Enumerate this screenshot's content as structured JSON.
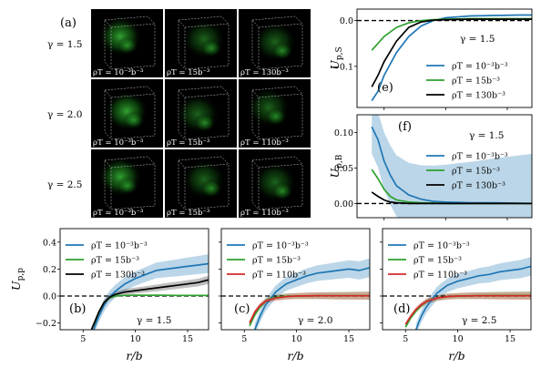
{
  "chart_data": [
    {
      "panel": "(a)",
      "type": "image-grid",
      "rows": [
        {
          "gamma_label": "γ = 1.5",
          "cells": [
            "ρT = 10⁻³b⁻³",
            "ρT = 15b⁻³",
            "ρT = 130b⁻³"
          ]
        },
        {
          "gamma_label": "γ = 2.0",
          "cells": [
            "ρT = 10⁻³b⁻³",
            "ρT = 15b⁻³",
            "ρT = 110b⁻³"
          ]
        },
        {
          "gamma_label": "γ = 2.5",
          "cells": [
            "ρT = 10⁻³b⁻³",
            "ρT = 15b⁻³",
            "ρT = 110b⁻³"
          ]
        }
      ]
    },
    {
      "panel": "(e)",
      "type": "line",
      "ylabel": "U_p,S",
      "ylim": [
        -0.19,
        0.025
      ],
      "xlim": [
        2.8,
        17
      ],
      "yticks": [
        0.0,
        -0.1
      ],
      "ytick_labels": [
        "0.0",
        "−0.1"
      ],
      "annotation": "γ = 1.5",
      "legend": "bottom-right",
      "series": [
        {
          "name": "ρT = 10⁻³b⁻³",
          "color": "#1f77b4",
          "x": [
            4,
            4.5,
            5,
            6,
            7,
            8,
            9,
            10,
            12,
            14,
            16,
            17
          ],
          "y": [
            -0.175,
            -0.155,
            -0.12,
            -0.07,
            -0.035,
            -0.012,
            0.0,
            0.006,
            0.01,
            0.011,
            0.012,
            0.012
          ]
        },
        {
          "name": "ρT = 15b⁻³",
          "color": "#2ca02c",
          "x": [
            4,
            4.5,
            5,
            6,
            7,
            8,
            9,
            10,
            12,
            14,
            16,
            17
          ],
          "y": [
            -0.065,
            -0.05,
            -0.035,
            -0.015,
            -0.005,
            0.0,
            0.002,
            0.003,
            0.004,
            0.004,
            0.004,
            0.004
          ]
        },
        {
          "name": "ρT = 130b⁻³",
          "color": "#000000",
          "x": [
            4,
            4.5,
            5,
            6,
            7,
            8,
            9,
            10,
            12,
            14,
            16,
            17
          ],
          "y": [
            -0.145,
            -0.12,
            -0.09,
            -0.045,
            -0.015,
            -0.003,
            0.001,
            0.002,
            0.003,
            0.003,
            0.003,
            0.003
          ]
        }
      ]
    },
    {
      "panel": "(f)",
      "type": "line",
      "ylabel": "U_p,B",
      "ylim": [
        -0.02,
        0.125
      ],
      "xlim": [
        2.8,
        17
      ],
      "yticks": [
        0.0,
        0.05,
        0.1
      ],
      "ytick_labels": [
        "0.00",
        "0.05",
        "0.10"
      ],
      "annotation": "γ = 1.5",
      "legend": "center-right",
      "series": [
        {
          "name": "ρT = 10⁻³b⁻³",
          "color": "#1f77b4",
          "band": true,
          "x": [
            4,
            4.5,
            5,
            5.5,
            6,
            7,
            8,
            9,
            10,
            12,
            14,
            17
          ],
          "y": [
            0.108,
            0.09,
            0.06,
            0.04,
            0.025,
            0.012,
            0.006,
            0.003,
            0.002,
            0.001,
            0.001,
            0.0
          ]
        },
        {
          "name": "ρT = 15b⁻³",
          "color": "#2ca02c",
          "x": [
            4,
            4.5,
            5,
            5.5,
            6,
            7,
            8,
            10,
            17
          ],
          "y": [
            0.048,
            0.035,
            0.02,
            0.01,
            0.005,
            0.002,
            0.001,
            0.0,
            0.0
          ]
        },
        {
          "name": "ρT = 130b⁻³",
          "color": "#000000",
          "x": [
            4,
            4.5,
            5,
            5.5,
            6,
            7,
            8,
            10,
            17
          ],
          "y": [
            0.016,
            0.01,
            0.005,
            0.002,
            0.001,
            0.0,
            0.0,
            0.0,
            0.0
          ]
        }
      ]
    },
    {
      "panel": "(b)",
      "type": "line",
      "ylabel": "U_p,p",
      "xlabel": "r/b",
      "ylim": [
        -0.25,
        0.5
      ],
      "xlim": [
        2.8,
        17
      ],
      "yticks": [
        -0.2,
        0.0,
        0.2,
        0.4
      ],
      "ytick_labels": [
        "−0.2",
        "0.0",
        "0.2",
        "0.4"
      ],
      "xticks": [
        5,
        10,
        15
      ],
      "annotation": "γ = 1.5",
      "legend": "top-left",
      "series": [
        {
          "name": "ρT = 10⁻³b⁻³",
          "color": "#1f77b4",
          "band": true,
          "x": [
            6,
            6.5,
            7,
            7.5,
            8,
            8.5,
            9,
            10,
            11,
            12,
            13,
            14,
            15,
            16,
            17
          ],
          "y": [
            -0.25,
            -0.15,
            -0.07,
            -0.01,
            0.03,
            0.06,
            0.09,
            0.13,
            0.16,
            0.19,
            0.2,
            0.21,
            0.22,
            0.23,
            0.24
          ]
        },
        {
          "name": "ρT = 15b⁻³",
          "color": "#2ca02c",
          "x": [
            6,
            6.5,
            7,
            7.5,
            8,
            9,
            10,
            12,
            14,
            17
          ],
          "y": [
            -0.22,
            -0.12,
            -0.05,
            -0.015,
            0.0,
            0.005,
            0.006,
            0.006,
            0.005,
            0.005
          ]
        },
        {
          "name": "ρT = 130b⁻³",
          "color": "#000000",
          "band": true,
          "x": [
            5.8,
            6.5,
            7,
            7.5,
            8,
            9,
            10,
            11,
            12,
            13,
            14,
            15,
            16,
            17
          ],
          "y": [
            -0.25,
            -0.12,
            -0.05,
            -0.01,
            0.01,
            0.03,
            0.04,
            0.05,
            0.06,
            0.07,
            0.08,
            0.09,
            0.1,
            0.12
          ]
        }
      ]
    },
    {
      "panel": "(c)",
      "type": "line",
      "xlabel": "r/b",
      "ylim": [
        -0.25,
        0.5
      ],
      "xlim": [
        2.8,
        17
      ],
      "xticks": [
        5,
        10,
        15
      ],
      "annotation": "γ = 2.0",
      "legend": "top-left",
      "series": [
        {
          "name": "ρT = 10⁻³b⁻³",
          "color": "#1f77b4",
          "band": true,
          "x": [
            6,
            6.5,
            7,
            7.5,
            8,
            8.5,
            9,
            10,
            11,
            12,
            13,
            14,
            15,
            16,
            17
          ],
          "y": [
            -0.25,
            -0.15,
            -0.07,
            -0.02,
            0.03,
            0.06,
            0.09,
            0.12,
            0.15,
            0.17,
            0.18,
            0.19,
            0.2,
            0.19,
            0.21
          ]
        },
        {
          "name": "ρT = 15b⁻³",
          "color": "#2ca02c",
          "band": true,
          "x": [
            5.5,
            6,
            6.5,
            7,
            7.5,
            8,
            9,
            10,
            12,
            14,
            17
          ],
          "y": [
            -0.22,
            -0.14,
            -0.08,
            -0.04,
            -0.02,
            -0.01,
            -0.002,
            0.0,
            0.002,
            0.003,
            0.003
          ]
        },
        {
          "name": "ρT = 110b⁻³",
          "color": "#d62728",
          "band": true,
          "x": [
            5.5,
            6,
            6.5,
            7,
            7.5,
            8,
            9,
            10,
            12,
            14,
            17
          ],
          "y": [
            -0.2,
            -0.12,
            -0.07,
            -0.04,
            -0.025,
            -0.015,
            -0.005,
            0.0,
            0.003,
            0.002,
            0.002
          ]
        }
      ]
    },
    {
      "panel": "(d)",
      "type": "line",
      "xlabel": "r/b",
      "ylim": [
        -0.25,
        0.5
      ],
      "xlim": [
        2.8,
        17
      ],
      "xticks": [
        5,
        10,
        15
      ],
      "annotation": "γ = 2.5",
      "legend": "top-left",
      "series": [
        {
          "name": "ρT = 10⁻³b⁻³",
          "color": "#1f77b4",
          "band": true,
          "x": [
            6,
            6.5,
            7,
            7.5,
            8,
            8.5,
            9,
            10,
            11,
            12,
            13,
            14,
            15,
            16,
            17
          ],
          "y": [
            -0.25,
            -0.15,
            -0.08,
            -0.03,
            0.02,
            0.05,
            0.08,
            0.11,
            0.13,
            0.15,
            0.16,
            0.18,
            0.19,
            0.2,
            0.22
          ]
        },
        {
          "name": "ρT = 15b⁻³",
          "color": "#2ca02c",
          "band": true,
          "x": [
            5,
            5.5,
            6,
            6.5,
            7,
            8,
            9,
            10,
            12,
            14,
            17
          ],
          "y": [
            -0.23,
            -0.16,
            -0.11,
            -0.07,
            -0.04,
            -0.015,
            -0.004,
            0.0,
            0.003,
            0.004,
            0.004
          ]
        },
        {
          "name": "ρT = 110b⁻³",
          "color": "#d62728",
          "band": true,
          "x": [
            5,
            5.5,
            6,
            6.5,
            7,
            8,
            9,
            10,
            12,
            14,
            17
          ],
          "y": [
            -0.21,
            -0.15,
            -0.1,
            -0.065,
            -0.04,
            -0.015,
            -0.004,
            0.0,
            0.002,
            0.002,
            0.002
          ]
        }
      ]
    }
  ]
}
